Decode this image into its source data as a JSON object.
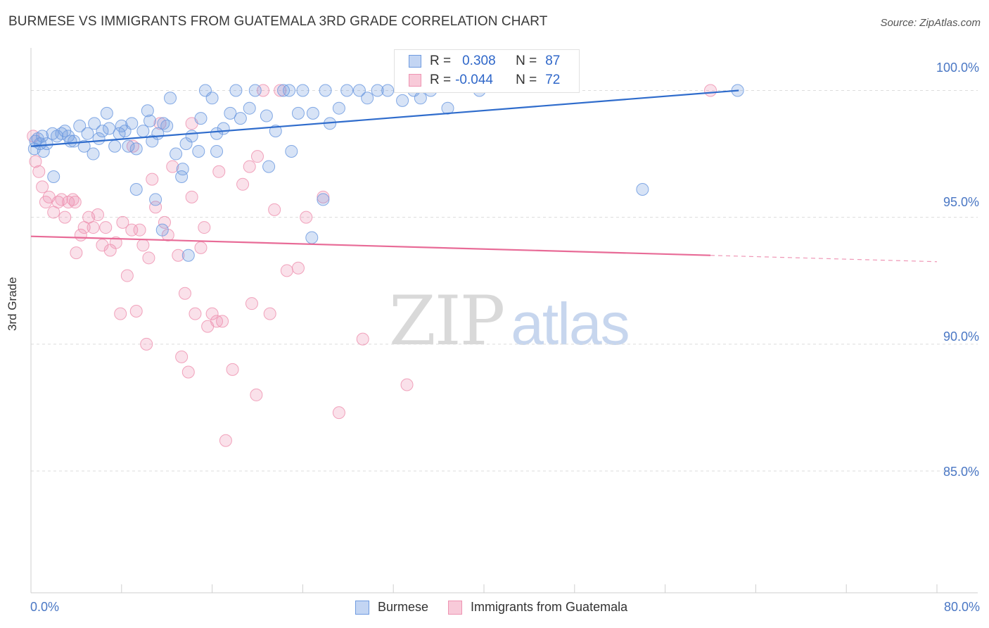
{
  "header": {
    "title": "BURMESE VS IMMIGRANTS FROM GUATEMALA 3RD GRADE CORRELATION CHART",
    "source": "Source: ZipAtlas.com"
  },
  "watermark": {
    "zip": "ZIP",
    "atlas": "atlas"
  },
  "legend": {
    "r_label": "R =",
    "n_label": "N =",
    "rows": [
      {
        "series": "Burmese",
        "r": "0.308",
        "n": "87"
      },
      {
        "series": "Immigrants from Guatemala",
        "r": "-0.044",
        "n": "72"
      }
    ]
  },
  "bottom_legend": [
    "Burmese",
    "Immigrants from Guatemala"
  ],
  "chart_data": {
    "type": "scatter",
    "title": "BURMESE VS IMMIGRANTS FROM GUATEMALA 3RD GRADE CORRELATION CHART",
    "xlabel": "",
    "ylabel": "3rd Grade",
    "xlim": [
      0,
      80
    ],
    "ylim": [
      80.2,
      101.9
    ],
    "x_tick_labels": [
      "0.0%",
      "80.0%"
    ],
    "y_ticks": [
      85,
      90,
      95,
      100
    ],
    "y_tick_labels": [
      "85.0%",
      "90.0%",
      "95.0%",
      "100.0%"
    ],
    "grid": true,
    "colors": {
      "Burmese": "#6f9be0",
      "Immigrants from Guatemala": "#ee94b2",
      "burmese_line": "#2f6ccc",
      "guatemala_line": "#e86b97"
    },
    "series": [
      {
        "name": "Burmese",
        "r": 0.308,
        "n": 87,
        "trend": {
          "x": [
            0,
            62.5
          ],
          "y": [
            97.8,
            100.0
          ]
        },
        "points": [
          [
            0.3,
            97.7
          ],
          [
            0.4,
            98.0
          ],
          [
            0.6,
            98.1
          ],
          [
            0.8,
            97.9
          ],
          [
            1.0,
            98.2
          ],
          [
            1.1,
            97.6
          ],
          [
            1.4,
            97.9
          ],
          [
            1.9,
            98.3
          ],
          [
            2.3,
            98.2
          ],
          [
            2.7,
            98.3
          ],
          [
            3.0,
            98.4
          ],
          [
            3.3,
            98.2
          ],
          [
            3.8,
            98.0
          ],
          [
            4.3,
            98.6
          ],
          [
            4.7,
            97.8
          ],
          [
            5.0,
            98.3
          ],
          [
            5.5,
            97.5
          ],
          [
            6.0,
            98.1
          ],
          [
            6.3,
            98.4
          ],
          [
            6.7,
            99.1
          ],
          [
            6.9,
            98.5
          ],
          [
            7.4,
            97.8
          ],
          [
            7.8,
            98.3
          ],
          [
            8.0,
            98.6
          ],
          [
            8.3,
            98.4
          ],
          [
            8.6,
            97.8
          ],
          [
            8.9,
            98.7
          ],
          [
            9.3,
            97.7
          ],
          [
            9.9,
            98.4
          ],
          [
            10.3,
            99.2
          ],
          [
            10.7,
            98.0
          ],
          [
            11.2,
            98.3
          ],
          [
            11.7,
            98.7
          ],
          [
            12.3,
            99.7
          ],
          [
            12.8,
            97.5
          ],
          [
            13.3,
            96.6
          ],
          [
            13.7,
            97.9
          ],
          [
            14.2,
            98.2
          ],
          [
            14.8,
            97.6
          ],
          [
            15.0,
            98.9
          ],
          [
            15.4,
            100.0
          ],
          [
            16.0,
            99.7
          ],
          [
            16.4,
            98.3
          ],
          [
            17.0,
            98.5
          ],
          [
            17.6,
            99.1
          ],
          [
            18.1,
            100.0
          ],
          [
            18.5,
            98.9
          ],
          [
            19.3,
            99.3
          ],
          [
            19.8,
            100.0
          ],
          [
            20.8,
            99.0
          ],
          [
            21.6,
            98.4
          ],
          [
            22.3,
            100.0
          ],
          [
            22.8,
            100.0
          ],
          [
            23.6,
            99.1
          ],
          [
            24.0,
            100.0
          ],
          [
            24.9,
            99.1
          ],
          [
            26.0,
            100.0
          ],
          [
            26.4,
            98.7
          ],
          [
            27.2,
            99.3
          ],
          [
            27.9,
            100.0
          ],
          [
            29.0,
            100.0
          ],
          [
            29.7,
            99.7
          ],
          [
            30.6,
            100.0
          ],
          [
            31.5,
            100.0
          ],
          [
            32.8,
            99.6
          ],
          [
            33.8,
            100.0
          ],
          [
            34.4,
            99.7
          ],
          [
            35.3,
            100.0
          ],
          [
            36.8,
            99.3
          ],
          [
            39.6,
            100.0
          ],
          [
            2.0,
            96.6
          ],
          [
            5.6,
            98.7
          ],
          [
            9.3,
            96.1
          ],
          [
            11.0,
            95.7
          ],
          [
            11.6,
            94.5
          ],
          [
            13.4,
            96.9
          ],
          [
            13.9,
            93.5
          ],
          [
            21.0,
            97.0
          ],
          [
            23.0,
            97.6
          ],
          [
            24.8,
            94.2
          ],
          [
            25.8,
            95.7
          ],
          [
            62.4,
            100.0
          ],
          [
            54.0,
            96.1
          ],
          [
            16.4,
            97.6
          ],
          [
            12.0,
            98.6
          ],
          [
            10.5,
            98.8
          ],
          [
            3.5,
            98.0
          ]
        ]
      },
      {
        "name": "Immigrants from Guatemala",
        "r": -0.044,
        "n": 72,
        "trend": {
          "x": [
            0,
            60
          ],
          "y": [
            94.25,
            93.5
          ]
        },
        "trend_dashed": {
          "x": [
            60,
            80
          ],
          "y": [
            93.5,
            93.25
          ]
        },
        "points": [
          [
            0.2,
            98.2
          ],
          [
            0.4,
            97.2
          ],
          [
            0.7,
            96.8
          ],
          [
            1.0,
            96.2
          ],
          [
            1.3,
            95.6
          ],
          [
            1.6,
            95.8
          ],
          [
            2.0,
            95.2
          ],
          [
            2.4,
            95.6
          ],
          [
            2.7,
            95.7
          ],
          [
            3.0,
            95.0
          ],
          [
            3.3,
            95.6
          ],
          [
            3.7,
            95.7
          ],
          [
            4.0,
            93.6
          ],
          [
            4.4,
            94.3
          ],
          [
            4.7,
            94.6
          ],
          [
            5.1,
            95.0
          ],
          [
            5.5,
            94.6
          ],
          [
            5.9,
            95.1
          ],
          [
            6.3,
            93.9
          ],
          [
            6.6,
            94.6
          ],
          [
            7.0,
            93.7
          ],
          [
            7.5,
            94.0
          ],
          [
            7.9,
            91.2
          ],
          [
            8.1,
            94.8
          ],
          [
            8.5,
            92.7
          ],
          [
            8.9,
            94.5
          ],
          [
            9.3,
            91.3
          ],
          [
            9.6,
            94.5
          ],
          [
            9.9,
            93.9
          ],
          [
            10.2,
            90.0
          ],
          [
            10.4,
            93.4
          ],
          [
            10.7,
            96.5
          ],
          [
            11.0,
            95.4
          ],
          [
            11.4,
            98.7
          ],
          [
            11.8,
            94.8
          ],
          [
            12.1,
            94.3
          ],
          [
            12.5,
            97.0
          ],
          [
            13.0,
            93.5
          ],
          [
            13.3,
            89.5
          ],
          [
            13.6,
            92.0
          ],
          [
            13.9,
            88.9
          ],
          [
            14.2,
            98.7
          ],
          [
            14.5,
            91.2
          ],
          [
            15.0,
            93.8
          ],
          [
            15.3,
            94.6
          ],
          [
            15.6,
            90.7
          ],
          [
            16.0,
            91.2
          ],
          [
            16.4,
            90.9
          ],
          [
            16.6,
            96.8
          ],
          [
            16.9,
            90.9
          ],
          [
            17.2,
            86.2
          ],
          [
            17.8,
            89.0
          ],
          [
            18.7,
            96.3
          ],
          [
            19.3,
            97.0
          ],
          [
            19.5,
            91.6
          ],
          [
            19.9,
            88.0
          ],
          [
            20.5,
            100.0
          ],
          [
            21.1,
            91.2
          ],
          [
            21.5,
            95.3
          ],
          [
            22.0,
            100.0
          ],
          [
            22.6,
            92.9
          ],
          [
            23.6,
            93.0
          ],
          [
            24.3,
            95.0
          ],
          [
            25.8,
            95.8
          ],
          [
            27.2,
            87.3
          ],
          [
            29.3,
            90.2
          ],
          [
            33.2,
            88.4
          ],
          [
            60.0,
            100.0
          ],
          [
            3.9,
            95.6
          ],
          [
            9.0,
            97.8
          ],
          [
            14.2,
            95.8
          ],
          [
            20.0,
            97.4
          ]
        ]
      }
    ]
  }
}
